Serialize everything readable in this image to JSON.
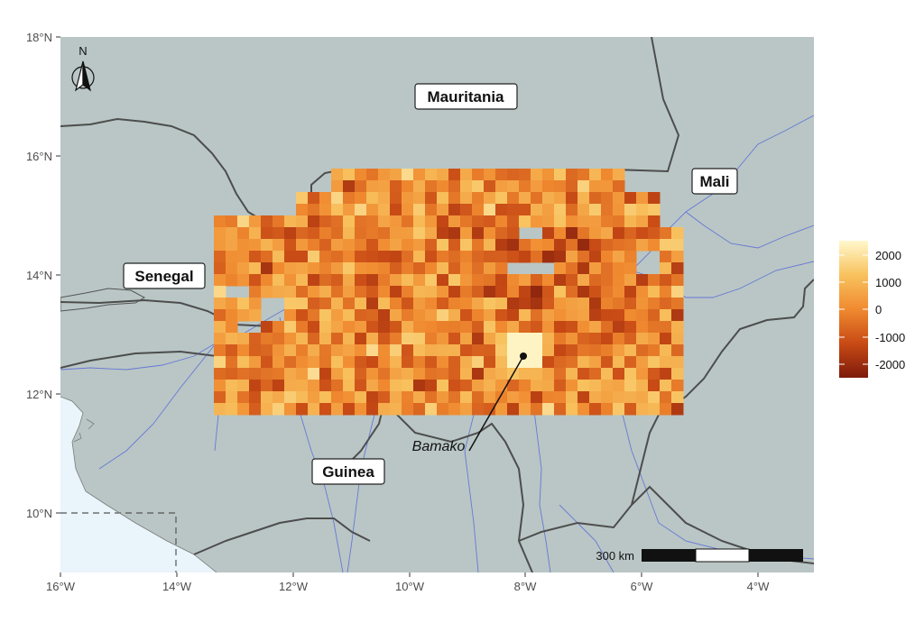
{
  "map": {
    "lat_ticks": [
      "18°N",
      "16°N",
      "14°N",
      "12°N",
      "10°N"
    ],
    "lon_ticks": [
      "16°W",
      "14°W",
      "12°W",
      "10°W",
      "8°W",
      "6°W",
      "4°W"
    ],
    "countries": [
      "Mauritania",
      "Mali",
      "Senegal",
      "Guinea"
    ],
    "city": "Bamako",
    "north_label": "N",
    "scale_label": "300 km",
    "colors": {
      "land": "#b9c6c5",
      "ocean": "#eaf4fb",
      "border": "#555555",
      "river": "#5f6fd8",
      "high": "#fff7c2",
      "mid": "#f08a30",
      "low": "#8a1e0c"
    }
  },
  "legend": {
    "ticks": [
      "2000",
      "1000",
      "0",
      "-1000",
      "-2000"
    ],
    "range": [
      -2400,
      2400
    ]
  }
}
